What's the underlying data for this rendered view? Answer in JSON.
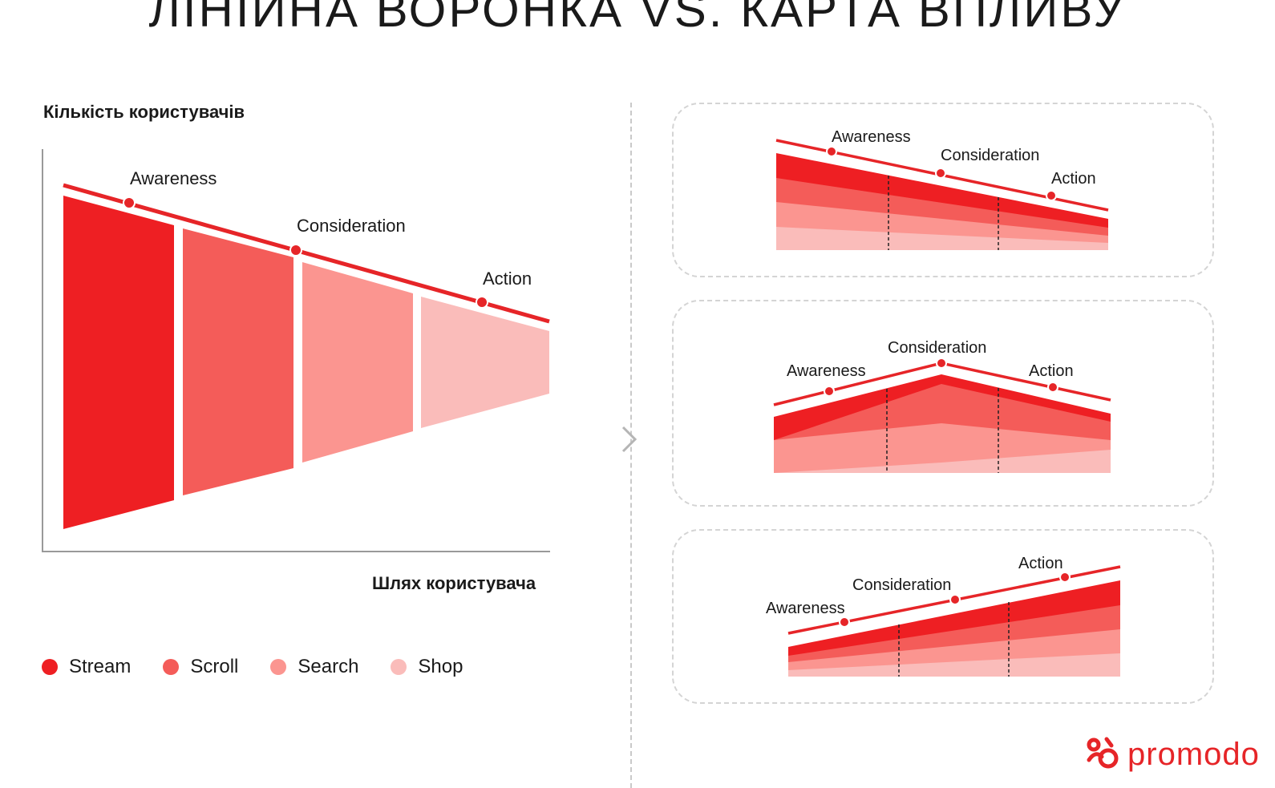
{
  "title": "ЛІНІЙНА ВОРОНКА VS. КАРТА ВПЛИВУ",
  "funnel": {
    "ylabel": "Кількість користувачів",
    "xlabel": "Шлях користувача",
    "stages": [
      "Awareness",
      "Consideration",
      "Action"
    ]
  },
  "legend": [
    {
      "label": "Stream",
      "color": "#ee1f23"
    },
    {
      "label": "Scroll",
      "color": "#f45c59"
    },
    {
      "label": "Search",
      "color": "#fb9590"
    },
    {
      "label": "Shop",
      "color": "#fabcba"
    }
  ],
  "impact_maps": [
    {
      "stages": [
        "Awareness",
        "Consideration",
        "Action"
      ],
      "trend": "decreasing"
    },
    {
      "stages": [
        "Awareness",
        "Consideration",
        "Action"
      ],
      "trend": "peak-middle"
    },
    {
      "stages": [
        "Awareness",
        "Consideration",
        "Action"
      ],
      "trend": "increasing"
    }
  ],
  "colors": {
    "stream": "#ee1f23",
    "scroll": "#f45c59",
    "search": "#fb9590",
    "shop": "#fabcba",
    "accent": "#e62528"
  },
  "icons": [
    "chevron-right-icon",
    "promodo-logo-icon"
  ],
  "brand": {
    "name": "promodo"
  }
}
